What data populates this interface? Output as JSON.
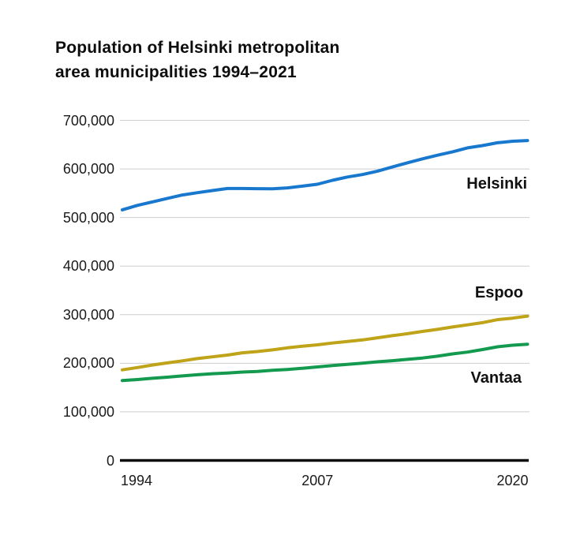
{
  "header": {
    "title_line1": "Population of Helsinki metropolitan",
    "title_line2": "area municipalities 1994–2021"
  },
  "chart_data": {
    "type": "line",
    "title": "Population of Helsinki metropolitan area municipalities 1994–2021",
    "xlabel": "",
    "ylabel": "",
    "xlim": [
      1994,
      2021
    ],
    "ylim": [
      0,
      700000
    ],
    "grid": "horizontal",
    "legend": "direct-labels",
    "x_years": [
      1994,
      1995,
      1996,
      1997,
      1998,
      1999,
      2000,
      2001,
      2002,
      2003,
      2004,
      2005,
      2006,
      2007,
      2008,
      2009,
      2010,
      2011,
      2012,
      2013,
      2014,
      2015,
      2016,
      2017,
      2018,
      2019,
      2020,
      2021
    ],
    "series": [
      {
        "name": "Helsinki",
        "color": "#1878CE",
        "values": [
          515800,
          525000,
          532100,
          539400,
          546300,
          551100,
          555500,
          559700,
          559700,
          559300,
          559000,
          560900,
          564500,
          568500,
          576600,
          583400,
          588500,
          595400,
          604000,
          612700,
          620700,
          628200,
          635200,
          643300,
          648000,
          653800,
          656900,
          658500
        ]
      },
      {
        "name": "Espoo",
        "color": "#BFA318",
        "values": [
          186500,
          191200,
          196300,
          200800,
          204900,
          209700,
          213300,
          216800,
          221600,
          224200,
          227500,
          231700,
          235000,
          238000,
          241600,
          244800,
          248000,
          252400,
          256800,
          260800,
          265500,
          269800,
          274600,
          279000,
          283600,
          289700,
          292900,
          297100
        ]
      },
      {
        "name": "Vantaa",
        "color": "#139A4F",
        "values": [
          164400,
          166500,
          169000,
          171300,
          173900,
          176400,
          178500,
          179900,
          181900,
          183100,
          185400,
          187300,
          189700,
          192500,
          195400,
          197600,
          200100,
          203000,
          205300,
          208100,
          210800,
          214600,
          219300,
          223000,
          228200,
          233800,
          237200,
          239200
        ]
      }
    ],
    "yticks": [
      {
        "value": 700000,
        "label": "700,000"
      },
      {
        "value": 600000,
        "label": "600,000"
      },
      {
        "value": 500000,
        "label": "500,000"
      },
      {
        "value": 400000,
        "label": "400,000"
      },
      {
        "value": 300000,
        "label": "300,000"
      },
      {
        "value": 200000,
        "label": "200,000"
      },
      {
        "value": 100000,
        "label": "100,000"
      },
      {
        "value": 0,
        "label": "0"
      }
    ],
    "xticks": [
      {
        "year": 1994,
        "label": "1994"
      },
      {
        "year": 2007,
        "label": "2007"
      },
      {
        "year": 2020,
        "label": "2020"
      }
    ],
    "colors": {
      "grid": "#CFCFCF",
      "axis": "#0d0d0d",
      "text": "#1a1a1a"
    }
  }
}
